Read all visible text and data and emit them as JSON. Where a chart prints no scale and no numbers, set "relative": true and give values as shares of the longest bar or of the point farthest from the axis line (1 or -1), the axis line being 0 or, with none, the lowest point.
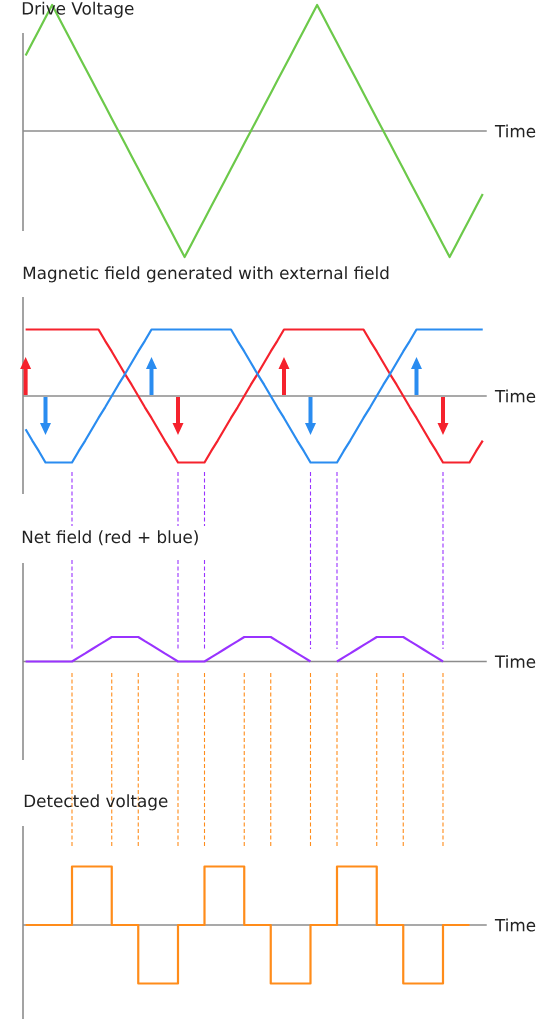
{
  "chart_data": [
    {
      "type": "line",
      "title": "Drive Voltage",
      "xlabel": "Time",
      "relative": true,
      "categories": [
        null,
        null,
        null,
        null,
        null,
        null,
        null,
        null,
        null,
        null,
        null,
        null,
        null,
        null,
        null,
        null,
        null,
        null,
        null,
        null,
        null,
        null,
        null,
        null,
        null,
        null,
        null,
        null,
        null,
        null,
        null,
        null,
        null,
        null,
        null,
        null,
        null,
        null,
        null,
        null,
        null,
        null,
        null,
        null,
        null,
        null,
        null,
        null,
        null,
        null,
        null,
        null,
        null,
        null,
        null,
        null,
        null,
        null,
        null,
        null,
        null,
        null,
        null,
        null,
        null,
        null,
        null,
        null,
        null,
        null
      ],
      "series": [
        {
          "color": "#6cc94a",
          "values": [
            0.6,
            0.7,
            0.8,
            0.9,
            1,
            0.9,
            0.8,
            0.7,
            0.6,
            0.5,
            0.4,
            0.3,
            0.2,
            0.1,
            0,
            -0.1,
            -0.2,
            -0.3,
            -0.4,
            -0.5,
            -0.6,
            -0.7,
            -0.8,
            -0.9,
            -1,
            -0.9,
            -0.8,
            -0.7,
            -0.6,
            -0.5,
            -0.4,
            -0.3,
            -0.2,
            -0.1,
            0,
            0.1,
            0.2,
            0.3,
            0.4,
            0.5,
            0.6,
            0.7,
            0.8,
            0.9,
            1,
            0.9,
            0.8,
            0.7,
            0.6,
            0.5,
            0.4,
            0.3,
            0.2,
            0.1,
            0,
            -0.1,
            -0.2,
            -0.3,
            -0.4,
            -0.5,
            -0.6,
            -0.7,
            -0.8,
            -0.9,
            -1,
            -0.9,
            -0.8,
            -0.7,
            -0.6,
            -0.5
          ]
        }
      ]
    },
    {
      "type": "line",
      "title": "Magnetic field generated with external field",
      "xlabel": "Time",
      "relative": true,
      "categories": [
        null,
        null,
        null,
        null,
        null,
        null,
        null,
        null,
        null,
        null,
        null,
        null,
        null,
        null,
        null,
        null,
        null,
        null,
        null,
        null,
        null,
        null,
        null,
        null,
        null,
        null,
        null,
        null,
        null,
        null,
        null,
        null,
        null,
        null,
        null,
        null,
        null,
        null,
        null,
        null,
        null,
        null,
        null,
        null,
        null,
        null,
        null,
        null,
        null,
        null,
        null,
        null,
        null,
        null,
        null,
        null,
        null,
        null,
        null,
        null,
        null,
        null,
        null,
        null,
        null,
        null,
        null,
        null,
        null,
        null
      ],
      "series": [
        {
          "color": "#f5222d",
          "values": [
            1,
            1,
            1,
            1,
            1,
            1,
            1,
            1,
            1,
            1,
            1,
            1,
            0.83,
            0.67,
            0.5,
            0.33,
            0.17,
            0,
            -0.17,
            -0.33,
            -0.5,
            -0.67,
            -0.83,
            -1,
            -1,
            -1,
            -1,
            -1,
            -0.83,
            -0.67,
            -0.5,
            -0.33,
            -0.17,
            0,
            0.17,
            0.33,
            0.5,
            0.67,
            0.83,
            1,
            1,
            1,
            1,
            1,
            1,
            1,
            1,
            1,
            1,
            1,
            1,
            1,
            0.83,
            0.67,
            0.5,
            0.33,
            0.17,
            0,
            -0.17,
            -0.33,
            -0.5,
            -0.67,
            -0.83,
            -1,
            -1,
            -1,
            -1,
            -1,
            -0.83,
            -0.67
          ]
        },
        {
          "color": "#2a8cf0",
          "values": [
            -0.5,
            -0.67,
            -0.83,
            -1,
            -1,
            -1,
            -1,
            -1,
            -0.83,
            -0.67,
            -0.5,
            -0.33,
            -0.17,
            0,
            0.17,
            0.33,
            0.5,
            0.67,
            0.83,
            1,
            1,
            1,
            1,
            1,
            1,
            1,
            1,
            1,
            1,
            1,
            1,
            1,
            0.83,
            0.67,
            0.5,
            0.33,
            0.17,
            0,
            -0.17,
            -0.33,
            -0.5,
            -0.67,
            -0.83,
            -1,
            -1,
            -1,
            -1,
            -1,
            -0.83,
            -0.67,
            -0.5,
            -0.33,
            -0.17,
            0,
            0.17,
            0.33,
            0.5,
            0.67,
            0.83,
            1,
            1,
            1,
            1,
            1,
            1,
            1,
            1,
            1,
            1,
            1
          ]
        }
      ]
    },
    {
      "type": "line",
      "title": "Net field (red + blue)",
      "xlabel": "Time",
      "relative": true,
      "grid": "x",
      "categories": [
        null,
        null,
        null,
        null,
        null,
        null,
        null,
        null,
        null,
        null,
        null,
        null,
        null,
        null,
        null,
        null,
        null,
        null,
        null,
        null,
        null,
        null,
        null,
        null,
        null,
        null,
        null,
        null,
        null,
        null,
        null,
        null,
        null,
        null,
        null,
        null,
        null,
        null,
        null,
        null,
        null,
        null,
        null,
        null,
        null,
        null,
        null,
        null,
        null,
        null,
        null,
        null,
        null,
        null,
        null,
        null,
        null,
        null,
        null,
        null,
        null,
        null,
        null,
        null,
        null,
        null,
        null,
        null,
        null,
        null
      ],
      "series": [
        {
          "color": "#9933ff",
          "values": [
            0,
            0,
            0,
            0,
            0,
            0,
            0,
            0,
            0.17,
            0.33,
            0.5,
            0.67,
            0.83,
            1,
            1,
            1,
            1,
            1,
            0.83,
            0.67,
            0.5,
            0.33,
            0.17,
            0,
            0,
            0,
            0,
            0,
            0.17,
            0.33,
            0.5,
            0.67,
            0.83,
            1,
            1,
            1,
            1,
            1,
            0.83,
            0.67,
            0.5,
            0.33,
            0.17,
            0,
            null,
            null,
            null,
            0,
            0.17,
            0.33,
            0.5,
            0.67,
            0.83,
            1,
            1,
            1,
            1,
            1,
            0.83,
            0.67,
            0.5,
            0.33,
            0.17,
            0,
            null,
            null,
            null,
            null,
            null,
            null
          ]
        }
      ]
    },
    {
      "type": "step",
      "title": "Detected voltage",
      "xlabel": "Time",
      "relative": true,
      "categories": [
        null,
        null,
        null,
        null,
        null,
        null,
        null,
        null,
        null,
        null,
        null,
        null,
        null,
        null,
        null,
        null,
        null,
        null,
        null,
        null,
        null,
        null,
        null,
        null,
        null,
        null,
        null,
        null,
        null,
        null,
        null,
        null,
        null,
        null,
        null,
        null,
        null,
        null,
        null,
        null,
        null,
        null,
        null,
        null,
        null,
        null,
        null,
        null,
        null,
        null,
        null,
        null,
        null,
        null,
        null,
        null,
        null,
        null,
        null,
        null,
        null,
        null,
        null,
        null,
        null,
        null,
        null,
        null,
        null,
        null
      ],
      "series": [
        {
          "color": "#ff8c1a",
          "values": [
            0,
            0,
            0,
            0,
            0,
            0,
            0,
            1,
            1,
            1,
            1,
            1,
            1,
            0,
            0,
            0,
            0,
            -1,
            -1,
            -1,
            -1,
            -1,
            -1,
            0,
            0,
            0,
            0,
            1,
            1,
            1,
            1,
            1,
            1,
            0,
            0,
            0,
            0,
            -1,
            -1,
            -1,
            -1,
            -1,
            -1,
            0,
            0,
            0,
            0,
            1,
            1,
            1,
            1,
            1,
            1,
            0,
            0,
            0,
            0,
            -1,
            -1,
            -1,
            -1,
            -1,
            -1,
            0,
            0,
            0,
            0,
            0,
            null,
            null
          ]
        }
      ]
    }
  ]
}
